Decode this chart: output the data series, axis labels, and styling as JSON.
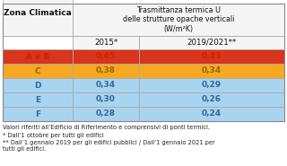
{
  "header_col": "Zona Climatica",
  "header_main": "Trasmittanza termica U\ndelle strutture opache verticali\n(W/m²K)",
  "col1_header": "2015*",
  "col2_header": "2019/2021**",
  "rows": [
    {
      "zone": "A e B",
      "val1": "0,45",
      "val2": "0,43",
      "color": "#d9341c"
    },
    {
      "zone": "C",
      "val1": "0,38",
      "val2": "0,34",
      "color": "#f5a820"
    },
    {
      "zone": "D",
      "val1": "0,34",
      "val2": "0,29",
      "color": "#a8d4f0"
    },
    {
      "zone": "E",
      "val1": "0,30",
      "val2": "0,26",
      "color": "#a8d4f0"
    },
    {
      "zone": "F",
      "val1": "0,28",
      "val2": "0,24",
      "color": "#a8d4f0"
    }
  ],
  "footnote1": "Valori riferiti all’Edificio di Riferimento e comprensivi di ponti termici.",
  "footnote2": "* Dall’1 ottobre per tutti gli edifici",
  "footnote3": "** Dall’1 gennaio 2019 per gli edifici pubblici / Dall’1 gennaio 2021 per\ntutti gli edifici.",
  "bg_color": "#ffffff",
  "border_color": "#aaaaaa",
  "row_text_colors": {
    "#d9341c": "#cc2200",
    "#f5a820": "#996600",
    "#a8d4f0": "#336699"
  },
  "fig_w": 3.2,
  "fig_h": 1.85,
  "dpi": 100
}
